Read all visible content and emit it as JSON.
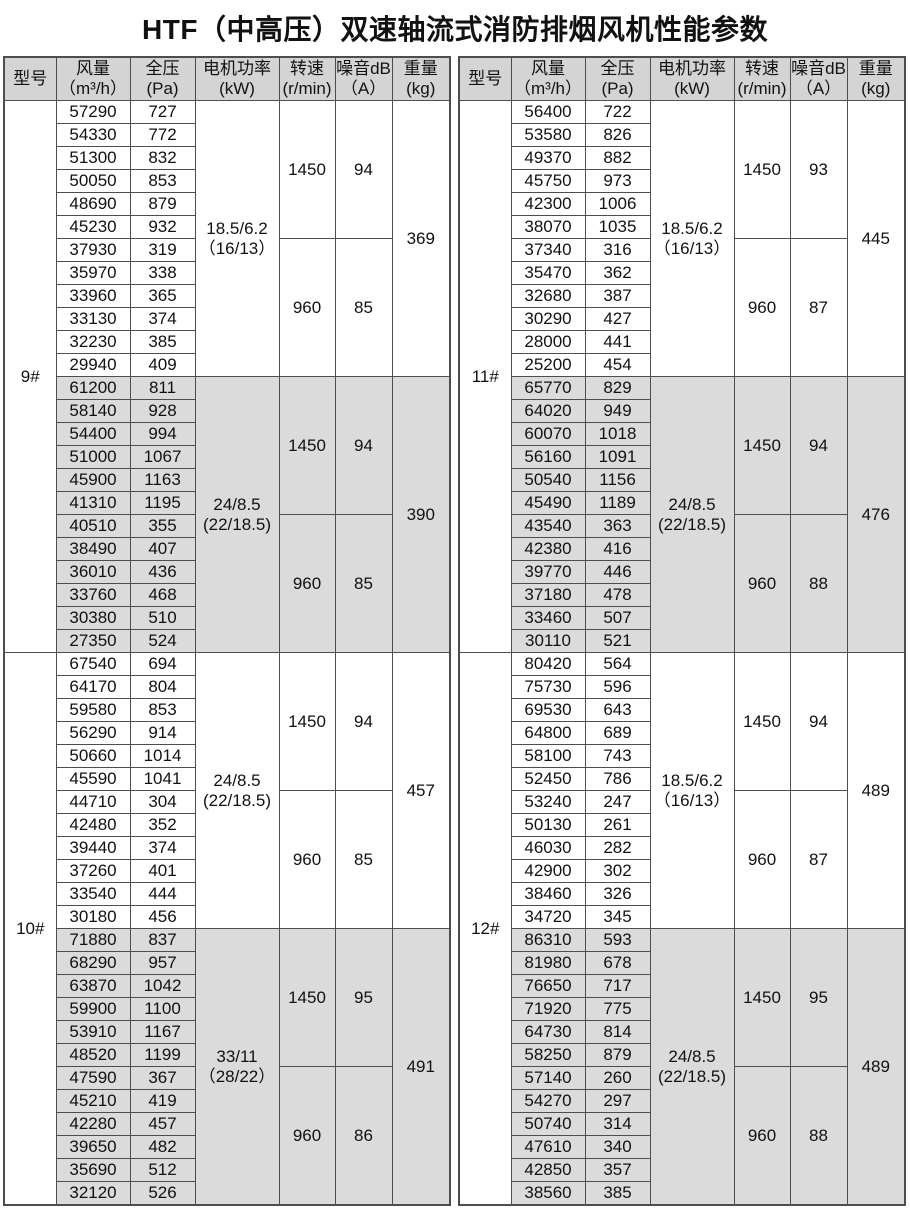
{
  "title": "HTF（中高压）双速轴流式消防排烟风机性能参数",
  "colors": {
    "border": "#4d4d4d",
    "header_bg": "#d4d4d4",
    "band_bg": "#dbdbdb",
    "text": "#111111"
  },
  "columns": [
    {
      "label": "型号",
      "unit": ""
    },
    {
      "label": "风量",
      "unit": "（m³/h）"
    },
    {
      "label": "全压",
      "unit": "(Pa)"
    },
    {
      "label": "电机功率",
      "unit": "(kW)"
    },
    {
      "label": "转速",
      "unit": "(r/min)"
    },
    {
      "label": "噪音dB",
      "unit": "（A）"
    },
    {
      "label": "重量",
      "unit": "(kg)"
    }
  ],
  "tables": [
    {
      "models": [
        {
          "model": "9#",
          "sections": [
            {
              "shaded": false,
              "power": [
                "18.5/6.2",
                "（16/13）"
              ],
              "weight": "369",
              "speed_groups": [
                {
                  "rpm": "1450",
                  "noise": "94"
                },
                {
                  "rpm": "960",
                  "noise": "85"
                }
              ],
              "rows": [
                [
                  57290,
                  727
                ],
                [
                  54330,
                  772
                ],
                [
                  51300,
                  832
                ],
                [
                  50050,
                  853
                ],
                [
                  48690,
                  879
                ],
                [
                  45230,
                  932
                ],
                [
                  37930,
                  319
                ],
                [
                  35970,
                  338
                ],
                [
                  33960,
                  365
                ],
                [
                  33130,
                  374
                ],
                [
                  32230,
                  385
                ],
                [
                  29940,
                  409
                ]
              ]
            },
            {
              "shaded": true,
              "power": [
                "24/8.5",
                "(22/18.5)"
              ],
              "weight": "390",
              "speed_groups": [
                {
                  "rpm": "1450",
                  "noise": "94"
                },
                {
                  "rpm": "960",
                  "noise": "85"
                }
              ],
              "rows": [
                [
                  61200,
                  811
                ],
                [
                  58140,
                  928
                ],
                [
                  54400,
                  994
                ],
                [
                  51000,
                  1067
                ],
                [
                  45900,
                  1163
                ],
                [
                  41310,
                  1195
                ],
                [
                  40510,
                  355
                ],
                [
                  38490,
                  407
                ],
                [
                  36010,
                  436
                ],
                [
                  33760,
                  468
                ],
                [
                  30380,
                  510
                ],
                [
                  27350,
                  524
                ]
              ]
            }
          ]
        },
        {
          "model": "10#",
          "sections": [
            {
              "shaded": false,
              "power": [
                "24/8.5",
                "(22/18.5)"
              ],
              "weight": "457",
              "speed_groups": [
                {
                  "rpm": "1450",
                  "noise": "94"
                },
                {
                  "rpm": "960",
                  "noise": "85"
                }
              ],
              "rows": [
                [
                  67540,
                  694
                ],
                [
                  64170,
                  804
                ],
                [
                  59580,
                  853
                ],
                [
                  56290,
                  914
                ],
                [
                  50660,
                  1014
                ],
                [
                  45590,
                  1041
                ],
                [
                  44710,
                  304
                ],
                [
                  42480,
                  352
                ],
                [
                  39440,
                  374
                ],
                [
                  37260,
                  401
                ],
                [
                  33540,
                  444
                ],
                [
                  30180,
                  456
                ]
              ]
            },
            {
              "shaded": true,
              "power": [
                "33/11",
                "（28/22）"
              ],
              "weight": "491",
              "speed_groups": [
                {
                  "rpm": "1450",
                  "noise": "95"
                },
                {
                  "rpm": "960",
                  "noise": "86"
                }
              ],
              "rows": [
                [
                  71880,
                  837
                ],
                [
                  68290,
                  957
                ],
                [
                  63870,
                  1042
                ],
                [
                  59900,
                  1100
                ],
                [
                  53910,
                  1167
                ],
                [
                  48520,
                  1199
                ],
                [
                  47590,
                  367
                ],
                [
                  45210,
                  419
                ],
                [
                  42280,
                  457
                ],
                [
                  39650,
                  482
                ],
                [
                  35690,
                  512
                ],
                [
                  32120,
                  526
                ]
              ]
            }
          ]
        }
      ]
    },
    {
      "models": [
        {
          "model": "11#",
          "sections": [
            {
              "shaded": false,
              "power": [
                "18.5/6.2",
                "（16/13）"
              ],
              "weight": "445",
              "speed_groups": [
                {
                  "rpm": "1450",
                  "noise": "93"
                },
                {
                  "rpm": "960",
                  "noise": "87"
                }
              ],
              "rows": [
                [
                  56400,
                  722
                ],
                [
                  53580,
                  826
                ],
                [
                  49370,
                  882
                ],
                [
                  45750,
                  973
                ],
                [
                  42300,
                  1006
                ],
                [
                  38070,
                  1035
                ],
                [
                  37340,
                  316
                ],
                [
                  35470,
                  362
                ],
                [
                  32680,
                  387
                ],
                [
                  30290,
                  427
                ],
                [
                  28000,
                  441
                ],
                [
                  25200,
                  454
                ]
              ]
            },
            {
              "shaded": true,
              "power": [
                "24/8.5",
                "(22/18.5)"
              ],
              "weight": "476",
              "speed_groups": [
                {
                  "rpm": "1450",
                  "noise": "94"
                },
                {
                  "rpm": "960",
                  "noise": "88"
                }
              ],
              "rows": [
                [
                  65770,
                  829
                ],
                [
                  64020,
                  949
                ],
                [
                  60070,
                  1018
                ],
                [
                  56160,
                  1091
                ],
                [
                  50540,
                  1156
                ],
                [
                  45490,
                  1189
                ],
                [
                  43540,
                  363
                ],
                [
                  42380,
                  416
                ],
                [
                  39770,
                  446
                ],
                [
                  37180,
                  478
                ],
                [
                  33460,
                  507
                ],
                [
                  30110,
                  521
                ]
              ]
            }
          ]
        },
        {
          "model": "12#",
          "sections": [
            {
              "shaded": false,
              "power": [
                "18.5/6.2",
                "（16/13）"
              ],
              "weight": "489",
              "speed_groups": [
                {
                  "rpm": "1450",
                  "noise": "94"
                },
                {
                  "rpm": "960",
                  "noise": "87"
                }
              ],
              "rows": [
                [
                  80420,
                  564
                ],
                [
                  75730,
                  596
                ],
                [
                  69530,
                  643
                ],
                [
                  64800,
                  689
                ],
                [
                  58100,
                  743
                ],
                [
                  52450,
                  786
                ],
                [
                  53240,
                  247
                ],
                [
                  50130,
                  261
                ],
                [
                  46030,
                  282
                ],
                [
                  42900,
                  302
                ],
                [
                  38460,
                  326
                ],
                [
                  34720,
                  345
                ]
              ]
            },
            {
              "shaded": true,
              "power": [
                "24/8.5",
                "(22/18.5)"
              ],
              "weight": "489",
              "speed_groups": [
                {
                  "rpm": "1450",
                  "noise": "95"
                },
                {
                  "rpm": "960",
                  "noise": "88"
                }
              ],
              "rows": [
                [
                  86310,
                  593
                ],
                [
                  81980,
                  678
                ],
                [
                  76650,
                  717
                ],
                [
                  71920,
                  775
                ],
                [
                  64730,
                  814
                ],
                [
                  58250,
                  879
                ],
                [
                  57140,
                  260
                ],
                [
                  54270,
                  297
                ],
                [
                  50740,
                  314
                ],
                [
                  47610,
                  340
                ],
                [
                  42850,
                  357
                ],
                [
                  38560,
                  385
                ]
              ]
            }
          ]
        }
      ]
    }
  ]
}
